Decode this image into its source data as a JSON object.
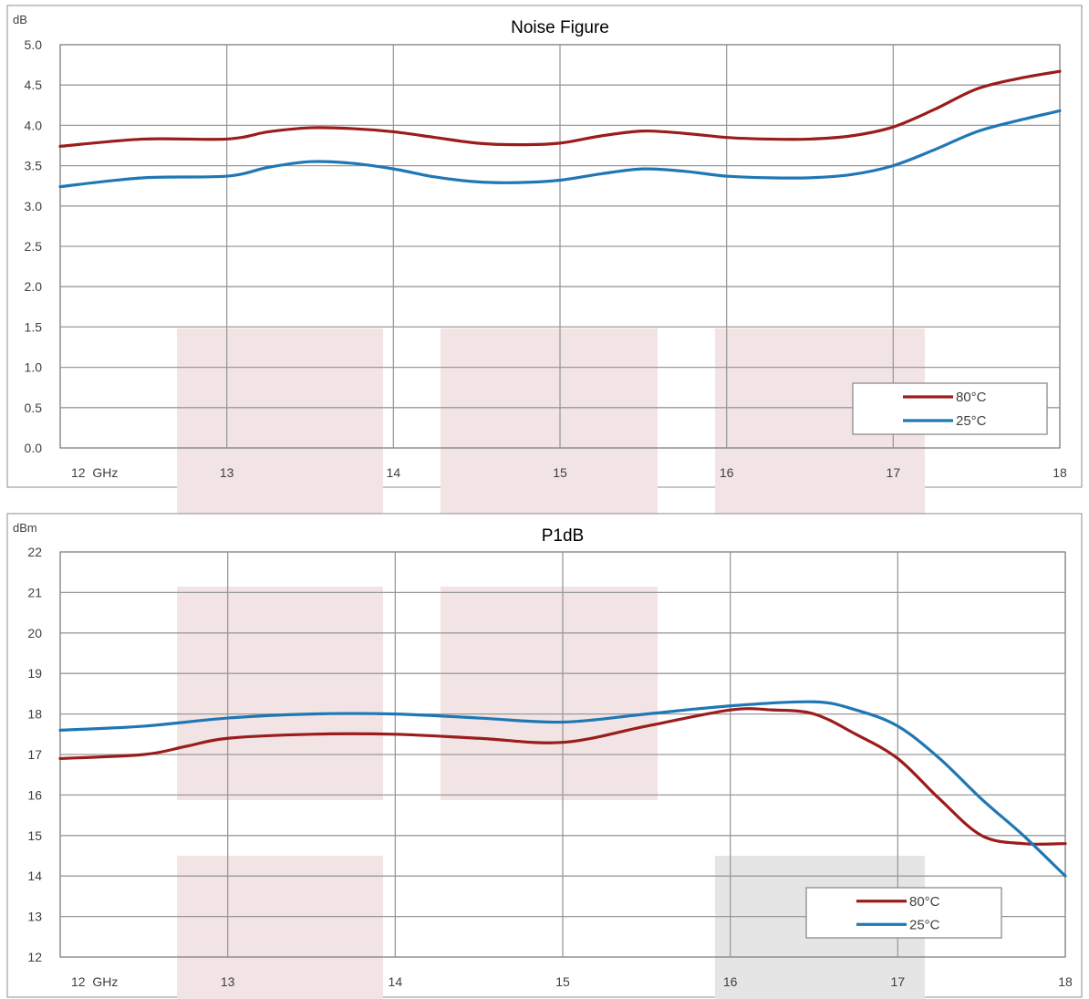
{
  "chart_data": [
    {
      "type": "line",
      "title": "Noise Figure",
      "ylabel": "dB",
      "xlabel": "",
      "x_first_tick_label": "12  GHz",
      "x_ticks": [
        "12  GHz",
        "13",
        "14",
        "15",
        "16",
        "17",
        "18"
      ],
      "y_ticks": [
        "0.0",
        "0.5",
        "1.0",
        "1.5",
        "2.0",
        "2.5",
        "3.0",
        "3.5",
        "4.0",
        "4.5",
        "5.0"
      ],
      "xlim": [
        12,
        18
      ],
      "ylim": [
        0,
        5
      ],
      "grid": true,
      "legend_position": "bottom-right",
      "colors": {
        "80°C": "#9b1c1c",
        "25°C": "#1f77b4"
      },
      "series": [
        {
          "name": "80°C",
          "x": [
            12.0,
            12.5,
            13.0,
            13.25,
            13.5,
            13.75,
            14.0,
            14.25,
            14.5,
            14.75,
            15.0,
            15.25,
            15.5,
            15.75,
            16.0,
            16.25,
            16.5,
            16.75,
            17.0,
            17.25,
            17.5,
            17.75,
            18.0
          ],
          "y": [
            3.74,
            3.83,
            3.83,
            3.92,
            3.97,
            3.96,
            3.92,
            3.85,
            3.78,
            3.76,
            3.78,
            3.87,
            3.93,
            3.9,
            3.85,
            3.83,
            3.83,
            3.87,
            3.98,
            4.2,
            4.45,
            4.58,
            4.67
          ]
        },
        {
          "name": "25°C",
          "x": [
            12.0,
            12.5,
            13.0,
            13.25,
            13.5,
            13.75,
            14.0,
            14.25,
            14.5,
            14.75,
            15.0,
            15.25,
            15.5,
            15.75,
            16.0,
            16.25,
            16.5,
            16.75,
            17.0,
            17.25,
            17.5,
            17.75,
            18.0
          ],
          "y": [
            3.24,
            3.35,
            3.37,
            3.48,
            3.55,
            3.53,
            3.46,
            3.36,
            3.3,
            3.29,
            3.32,
            3.4,
            3.46,
            3.43,
            3.37,
            3.35,
            3.35,
            3.39,
            3.5,
            3.7,
            3.92,
            4.06,
            4.18
          ]
        }
      ]
    },
    {
      "type": "line",
      "title": "P1dB",
      "ylabel": "dBm",
      "xlabel": "",
      "x_first_tick_label": "12  GHz",
      "x_ticks": [
        "12  GHz",
        "13",
        "14",
        "15",
        "16",
        "17",
        "18"
      ],
      "y_ticks": [
        "12",
        "13",
        "14",
        "15",
        "16",
        "17",
        "18",
        "19",
        "20",
        "21",
        "22"
      ],
      "xlim": [
        12,
        18
      ],
      "ylim": [
        12,
        22
      ],
      "grid": true,
      "legend_position": "bottom-right",
      "colors": {
        "80°C": "#9b1c1c",
        "25°C": "#1f77b4"
      },
      "series": [
        {
          "name": "80°C",
          "x": [
            12.0,
            12.5,
            12.75,
            13.0,
            13.5,
            14.0,
            14.5,
            15.0,
            15.5,
            16.0,
            16.25,
            16.5,
            16.75,
            17.0,
            17.25,
            17.5,
            17.75,
            18.0
          ],
          "y": [
            16.9,
            17.0,
            17.2,
            17.4,
            17.5,
            17.5,
            17.4,
            17.3,
            17.7,
            18.1,
            18.1,
            18.0,
            17.5,
            16.9,
            15.9,
            15.0,
            14.8,
            14.8
          ]
        },
        {
          "name": "25°C",
          "x": [
            12.0,
            12.5,
            13.0,
            13.5,
            14.0,
            14.5,
            15.0,
            15.5,
            16.0,
            16.5,
            16.75,
            17.0,
            17.25,
            17.5,
            17.75,
            18.0
          ],
          "y": [
            17.6,
            17.7,
            17.9,
            18.0,
            18.0,
            17.9,
            17.8,
            18.0,
            18.2,
            18.3,
            18.1,
            17.7,
            16.9,
            15.9,
            15.0,
            14.0
          ]
        }
      ]
    }
  ]
}
